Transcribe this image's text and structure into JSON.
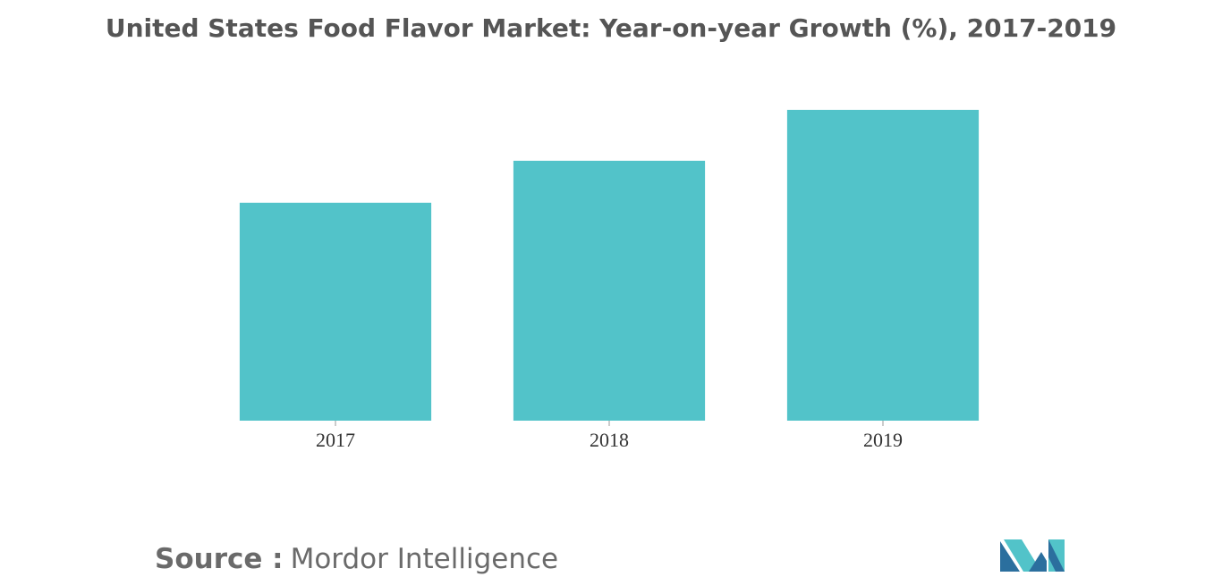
{
  "chart_data": {
    "type": "bar",
    "title": "United States Food Flavor Market: Year-on-year Growth (%), 2017-2019",
    "categories": [
      "2017",
      "2018",
      "2019"
    ],
    "values": [
      2.44,
      2.91,
      3.48
    ],
    "color": "#52c3c9"
  },
  "source": {
    "label": "Source :",
    "text": "Mordor Intelligence"
  }
}
